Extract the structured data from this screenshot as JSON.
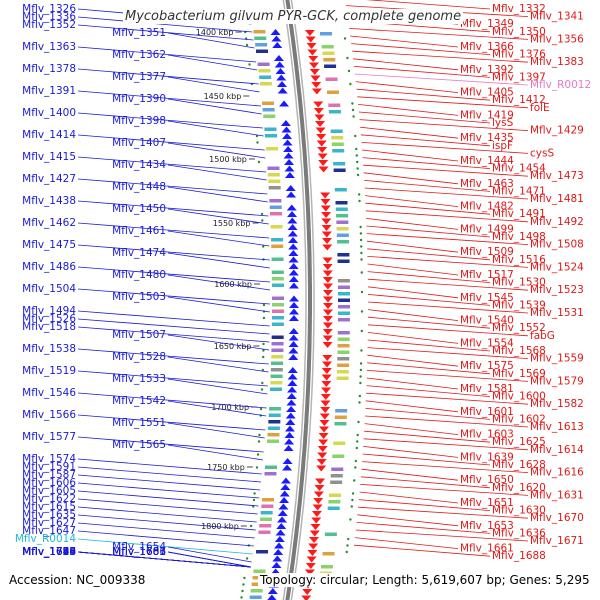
{
  "title": "Mycobacterium gilvum PYR-GCK, complete genome",
  "footer": {
    "accession": "Accession: NC_009338",
    "summary": "Topology: circular; Length: 5,619,607 bp; Genes: 5,295"
  },
  "colors": {
    "left_labels": "#1a1ad6",
    "right_labels": "#e01818",
    "rna_left": "#20b8d8",
    "rna_right": "#e878c8",
    "plus_strand": "#1a1aff",
    "minus_strand": "#ff1a1a",
    "backbone": "#7a7a7a"
  },
  "ticks": [
    "1400 kbp",
    "1450 kbp",
    "1500 kbp",
    "1550 kbp",
    "1600 kbp",
    "1650 kbp",
    "1700 kbp",
    "1750 kbp",
    "1800 kbp"
  ],
  "left_labels": [
    "Mflv_1326",
    "Mflv_1336",
    "Mflv_1352",
    "Mflv_1351",
    "Mflv_1363",
    "Mflv_1362",
    "Mflv_1378",
    "Mflv_1377",
    "Mflv_1391",
    "Mflv_1390",
    "Mflv_1400",
    "Mflv_1398",
    "Mflv_1414",
    "Mflv_1407",
    "Mflv_1415",
    "Mflv_1434",
    "Mflv_1427",
    "Mflv_1448",
    "Mflv_1438",
    "Mflv_1450",
    "Mflv_1462",
    "Mflv_1461",
    "Mflv_1475",
    "Mflv_1474",
    "Mflv_1486",
    "Mflv_1480",
    "Mflv_1504",
    "Mflv_1503",
    "Mflv_1494",
    "Mflv_1526",
    "Mflv_1518",
    "Mflv_1507",
    "Mflv_1538",
    "Mflv_1528",
    "Mflv_1519",
    "Mflv_1533",
    "Mflv_1546",
    "Mflv_1542",
    "Mflv_1566",
    "Mflv_1551",
    "Mflv_1577",
    "Mflv_1565",
    "Mflv_1574",
    "Mflv_1591",
    "Mflv_1587",
    "Mflv_1606",
    "Mflv_1605",
    "Mflv_1622",
    "Mflv_1615",
    "Mflv_1635",
    "Mflv_1627",
    "Mflv_1647",
    "Mflv_R0014",
    "Mflv_1654",
    "Mflv_1683",
    "Mflv_1666",
    "Mflv_1697",
    "Mflv_1681",
    "Mflv_1699",
    "Mflv_1687",
    "Mflv_1723",
    "Mflv_1703",
    "Mflv_1718",
    "Mflv_1726",
    "Mflv_1745",
    "Mflv_1754",
    "Mflv_1775"
  ],
  "right_labels": [
    "Mflv_1332",
    "Mflv_1341",
    "Mflv_1349",
    "Mflv_1350",
    "Mflv_1356",
    "Mflv_1366",
    "Mflv_1376",
    "Mflv_1383",
    "Mflv_1392",
    "Mflv_1397",
    "Mflv_R0012",
    "Mflv_1405",
    "Mflv_1412",
    "folE",
    "Mflv_1419",
    "lysS",
    "Mflv_1429",
    "Mflv_1435",
    "ispF",
    "cysS",
    "Mflv_1444",
    "Mflv_1454",
    "Mflv_1473",
    "Mflv_1463",
    "Mflv_1471",
    "Mflv_1481",
    "Mflv_1482",
    "Mflv_1491",
    "Mflv_1492",
    "Mflv_1499",
    "Mflv_1498",
    "Mflv_1508",
    "Mflv_1509",
    "Mflv_1516",
    "Mflv_1524",
    "Mflv_1517",
    "Mflv_1530",
    "Mflv_1523",
    "Mflv_1545",
    "Mflv_1539",
    "Mflv_1531",
    "Mflv_1540",
    "Mflv_1552",
    "fabG",
    "Mflv_1554",
    "Mflv_1568",
    "Mflv_1559",
    "Mflv_1575",
    "Mflv_1569",
    "Mflv_1579",
    "Mflv_1581",
    "Mflv_1600",
    "Mflv_1582",
    "Mflv_1601",
    "Mflv_1602",
    "Mflv_1613",
    "Mflv_1603",
    "Mflv_1625",
    "Mflv_1614",
    "Mflv_1639",
    "Mflv_1628",
    "Mflv_1616",
    "Mflv_1650",
    "Mflv_1620",
    "Mflv_1631",
    "Mflv_1651",
    "Mflv_1630",
    "Mflv_1670",
    "Mflv_1653",
    "Mflv_1636",
    "Mflv_1671",
    "Mflv_1661",
    "Mflv_1688"
  ]
}
